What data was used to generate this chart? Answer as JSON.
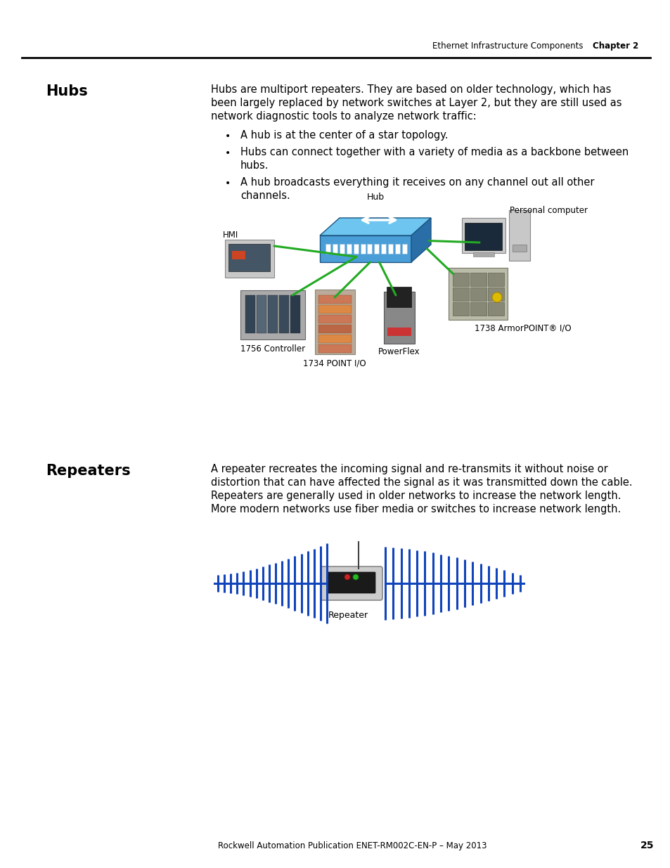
{
  "page_bg": "#ffffff",
  "top_header_text": "Ethernet Infrastructure Components",
  "top_header_bold": "Chapter 2",
  "bottom_footer_text": "Rockwell Automation Publication ENET-RM002C-EN-P – May 2013",
  "bottom_footer_page": "25",
  "section1_heading": "Hubs",
  "section1_body_lines": [
    "Hubs are multiport repeaters. They are based on older technology, which has",
    "been largely replaced by network switches at Layer 2, but they are still used as",
    "network diagnostic tools to analyze network traffic:"
  ],
  "section1_bullets": [
    [
      "A hub is at the center of a star topology."
    ],
    [
      "Hubs can connect together with a variety of media as a backbone between",
      "hubs."
    ],
    [
      "A hub broadcasts everything it receives on any channel out all other",
      "channels."
    ]
  ],
  "section2_heading": "Repeaters",
  "section2_body_lines": [
    "A repeater recreates the incoming signal and re-transmits it without noise or",
    "distortion that can have affected the signal as it was transmitted down the cable.",
    "Repeaters are generally used in older networks to increase the network length.",
    "More modern networks use fiber media or switches to increase network length."
  ],
  "hub_label": "Hub",
  "hmi_label": "HMI",
  "pc_label": "Personal computer",
  "ctrl_label": "1756 Controller",
  "point_label": "1734 POINT I/O",
  "pf_label": "PowerFlex",
  "armor_label": "1738 ArmorPOINT® I/O",
  "repeater_label": "Repeater",
  "green_color": "#22AA22",
  "blue_signal_color": "#1144BB",
  "hub_blue_top": "#6EC6F0",
  "hub_blue_front": "#4A9ED8",
  "hub_blue_right": "#2A6EA8",
  "hub_port_color": "#AADDFF"
}
